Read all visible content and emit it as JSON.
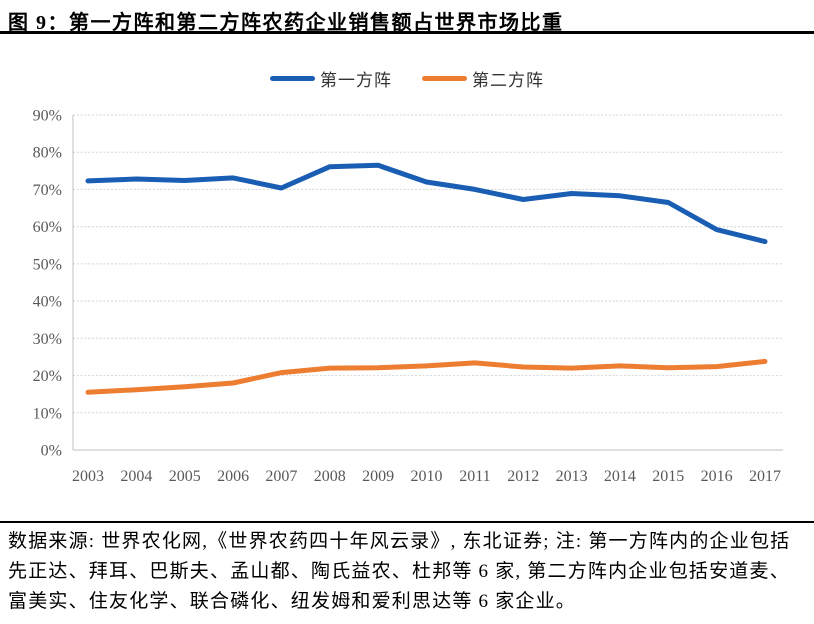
{
  "figure": {
    "title": "图 9：第一方阵和第二方阵农药企业销售额占世界市场比重",
    "source_note": "数据来源: 世界农化网,《世界农药四十年风云录》, 东北证券; 注: 第一方阵内的企业包括先正达、拜耳、巴斯夫、孟山都、陶氏益农、杜邦等 6 家, 第二方阵内企业包括安道麦、富美实、住友化学、联合磷化、纽发姆和爱利思达等 6 家企业。"
  },
  "colors": {
    "series1": "#1A5EB4",
    "series2": "#ED7D31",
    "grid": "#D4D4D4",
    "axis_line": "#C0C0C0",
    "axis_text": "#595959",
    "rule": "#000000"
  },
  "chart_data": {
    "type": "line",
    "title": "图 9：第一方阵和第二方阵农药企业销售额占世界市场比重",
    "categories": [
      "2003",
      "2004",
      "2005",
      "2006",
      "2007",
      "2008",
      "2009",
      "2010",
      "2011",
      "2012",
      "2013",
      "2014",
      "2015",
      "2016",
      "2017"
    ],
    "series": [
      {
        "name": "第一方阵",
        "color_key": "series1",
        "values": [
          72.3,
          72.8,
          72.4,
          73.1,
          70.4,
          76.1,
          76.5,
          72.0,
          70.0,
          67.3,
          68.9,
          68.3,
          66.5,
          59.2,
          56.0
        ]
      },
      {
        "name": "第二方阵",
        "color_key": "series2",
        "values": [
          15.5,
          16.2,
          17.0,
          18.0,
          20.8,
          22.0,
          22.1,
          22.6,
          23.4,
          22.3,
          22.0,
          22.6,
          22.1,
          22.4,
          23.8
        ]
      }
    ],
    "xlabel": "",
    "ylabel": "",
    "ylim": [
      0,
      90
    ],
    "ytick_step": 10,
    "ytick_format": "percent",
    "grid": true,
    "legend_position": "top"
  }
}
